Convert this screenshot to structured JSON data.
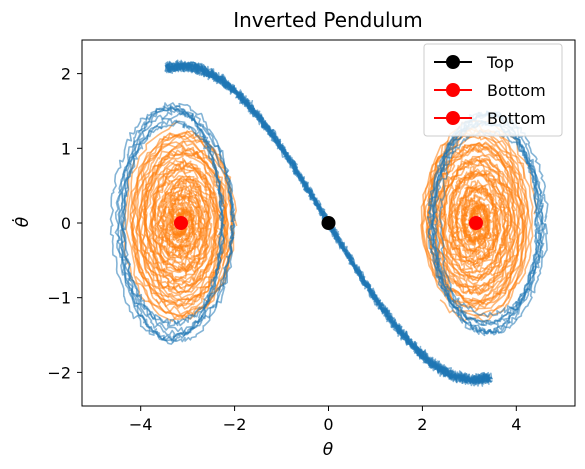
{
  "chart_data": {
    "type": "line",
    "title": "Inverted Pendulum",
    "xlabel": "θ",
    "ylabel": "θ̇",
    "xlim": [
      -5.25,
      5.25
    ],
    "ylim": [
      -2.45,
      2.45
    ],
    "xticks": [
      -4,
      -2,
      0,
      2,
      4
    ],
    "yticks": [
      -2,
      -1,
      0,
      1,
      2
    ],
    "xtick_labels": [
      "−4",
      "−2",
      "0",
      "2",
      "4"
    ],
    "ytick_labels": [
      "−2",
      "−1",
      "0",
      "1",
      "2"
    ],
    "grid": false,
    "legend_position": "top-right",
    "colors": {
      "blue_trajectories": "#1f77b4",
      "orange_trajectories": "#ff7f0e",
      "top_marker": "#000000",
      "bottom_marker": "#ff0000"
    },
    "markers": [
      {
        "name": "Top",
        "x": 0,
        "y": 0,
        "color": "#000000"
      },
      {
        "name": "Bottom",
        "x": -3.1416,
        "y": 0,
        "color": "#ff0000"
      },
      {
        "name": "Bottom",
        "x": 3.1416,
        "y": 0,
        "color": "#ff0000"
      }
    ],
    "trajectory_groups": [
      {
        "color": "#1f77b4",
        "description_points": [
          [
            -4.6,
            0.0
          ],
          [
            -4.3,
            1.2
          ],
          [
            -3.5,
            1.95
          ],
          [
            -2.9,
            2.15
          ],
          [
            -2.0,
            1.9
          ],
          [
            -1.0,
            1.15
          ],
          [
            0.0,
            0.0
          ],
          [
            1.0,
            -1.15
          ],
          [
            2.0,
            -1.9
          ],
          [
            2.9,
            -2.15
          ],
          [
            3.5,
            -1.95
          ],
          [
            4.3,
            -1.2
          ],
          [
            4.6,
            0.0
          ],
          [
            4.4,
            0.9
          ],
          [
            3.9,
            1.25
          ],
          [
            3.4,
            0.8
          ],
          [
            3.1,
            0.0
          ],
          [
            3.3,
            -0.7
          ],
          [
            3.7,
            -1.3
          ]
        ]
      },
      {
        "color": "#ff7f0e",
        "description_points": [
          [
            -3.14,
            0.0
          ],
          [
            -2.3,
            1.1
          ],
          [
            -1.9,
            1.7
          ],
          [
            -2.6,
            1.5
          ],
          [
            -3.8,
            1.1
          ],
          [
            -4.2,
            0.0
          ],
          [
            -3.8,
            -1.2
          ],
          [
            -3.0,
            -1.3
          ],
          [
            -2.2,
            -0.6
          ],
          [
            -2.5,
            0.8
          ],
          [
            3.14,
            0.0
          ],
          [
            3.9,
            1.2
          ],
          [
            4.5,
            1.0
          ],
          [
            4.3,
            -0.6
          ],
          [
            3.3,
            -1.3
          ],
          [
            2.5,
            -0.5
          ],
          [
            2.7,
            0.8
          ],
          [
            3.1,
            1.0
          ]
        ]
      }
    ]
  }
}
